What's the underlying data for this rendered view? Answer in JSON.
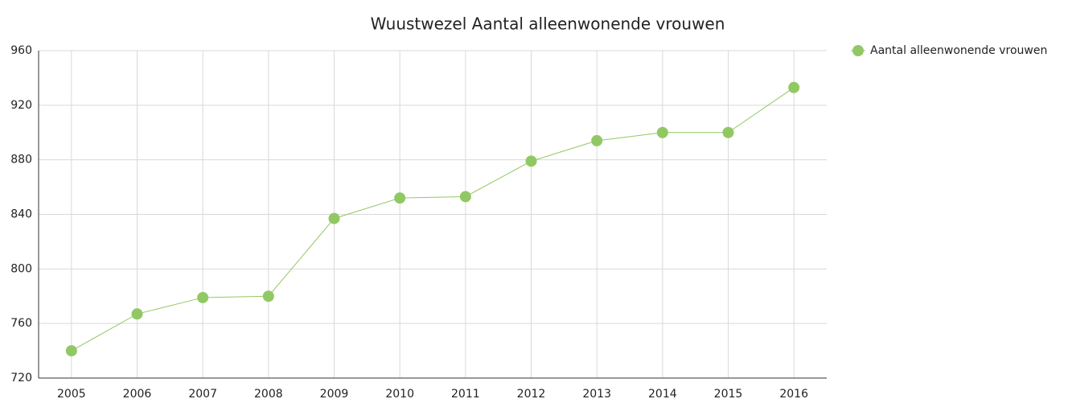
{
  "chart_data": {
    "type": "line",
    "title": "Wuustwezel  Aantal alleenwonende vrouwen",
    "categories": [
      "2005",
      "2006",
      "2007",
      "2008",
      "2009",
      "2010",
      "2011",
      "2012",
      "2013",
      "2014",
      "2015",
      "2016"
    ],
    "series": [
      {
        "name": "Aantal alleenwonende vrouwen",
        "color": "#92c864",
        "values": [
          740,
          767,
          779,
          780,
          837,
          852,
          853,
          879,
          894,
          900,
          900,
          933
        ]
      }
    ],
    "ylim": [
      720,
      960
    ],
    "yticks": [
      720,
      760,
      800,
      840,
      880,
      920,
      960
    ],
    "grid": true,
    "legend": "top-right"
  }
}
